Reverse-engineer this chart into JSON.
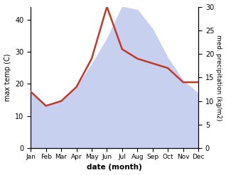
{
  "months": [
    "Jan",
    "Feb",
    "Mar",
    "Apr",
    "May",
    "Jun",
    "Jul",
    "Aug",
    "Sep",
    "Oct",
    "Nov",
    "Dec"
  ],
  "max_temp": [
    17,
    13,
    15,
    19,
    26,
    34,
    44,
    43,
    37,
    28,
    21,
    17
  ],
  "precipitation": [
    12,
    9,
    10,
    13,
    19,
    30,
    21,
    19,
    18,
    17,
    14,
    14
  ],
  "temp_fill_color": "#c8d0f0",
  "temp_line_color": "#a0aad0",
  "precip_color": "#c0392b",
  "temp_ylim": [
    0,
    44
  ],
  "precip_ylim": [
    0,
    29.3
  ],
  "temp_yticks": [
    0,
    10,
    20,
    30,
    40
  ],
  "precip_yticks": [
    0,
    5,
    10,
    15,
    20,
    25,
    30
  ],
  "xlabel": "date (month)",
  "ylabel_left": "max temp (C)",
  "ylabel_right": "med. precipitation (kg/m2)",
  "bg_color": "#ffffff"
}
